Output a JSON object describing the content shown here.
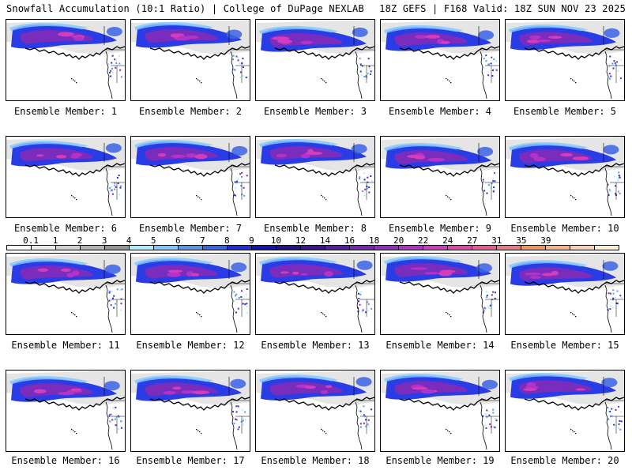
{
  "header": {
    "title": "Snowfall Accumulation (10:1 Ratio) | College of DuPage NEXLAB",
    "valid": "18Z GEFS | F168 Valid: 18Z SUN NOV 23 2025"
  },
  "colorbar": {
    "labels": [
      "0.1",
      "1",
      "2",
      "3",
      "4",
      "5",
      "6",
      "7",
      "8",
      "9",
      "10",
      "12",
      "14",
      "16",
      "18",
      "20",
      "22",
      "24",
      "27",
      "31",
      "35",
      "39"
    ],
    "colors": [
      "#ffffff",
      "#ececec",
      "#d2d2d2",
      "#b4b4b4",
      "#969696",
      "#aaeeff",
      "#7dc8ff",
      "#5a96f0",
      "#3c64e6",
      "#1e32dc",
      "#1414b4",
      "#28108c",
      "#3c1496",
      "#5a1ea5",
      "#7828b4",
      "#962dc3",
      "#b432c8",
      "#d23cbe",
      "#e646aa",
      "#ec5a96",
      "#f07882",
      "#f4965a",
      "#f8b486",
      "#fcd2b4",
      "#fff0d2"
    ]
  },
  "members": [
    {
      "label": "Ensemble Member: 1"
    },
    {
      "label": "Ensemble Member: 2"
    },
    {
      "label": "Ensemble Member: 3"
    },
    {
      "label": "Ensemble Member: 4"
    },
    {
      "label": "Ensemble Member: 5"
    },
    {
      "label": "Ensemble Member: 6"
    },
    {
      "label": "Ensemble Member: 7"
    },
    {
      "label": "Ensemble Member: 8"
    },
    {
      "label": "Ensemble Member: 9"
    },
    {
      "label": "Ensemble Member: 10"
    },
    {
      "label": "Ensemble Member: 11"
    },
    {
      "label": "Ensemble Member: 12"
    },
    {
      "label": "Ensemble Member: 13"
    },
    {
      "label": "Ensemble Member: 14"
    },
    {
      "label": "Ensemble Member: 15"
    },
    {
      "label": "Ensemble Member: 16"
    },
    {
      "label": "Ensemble Member: 17"
    },
    {
      "label": "Ensemble Member: 18"
    },
    {
      "label": "Ensemble Member: 19"
    },
    {
      "label": "Ensemble Member: 20"
    }
  ]
}
